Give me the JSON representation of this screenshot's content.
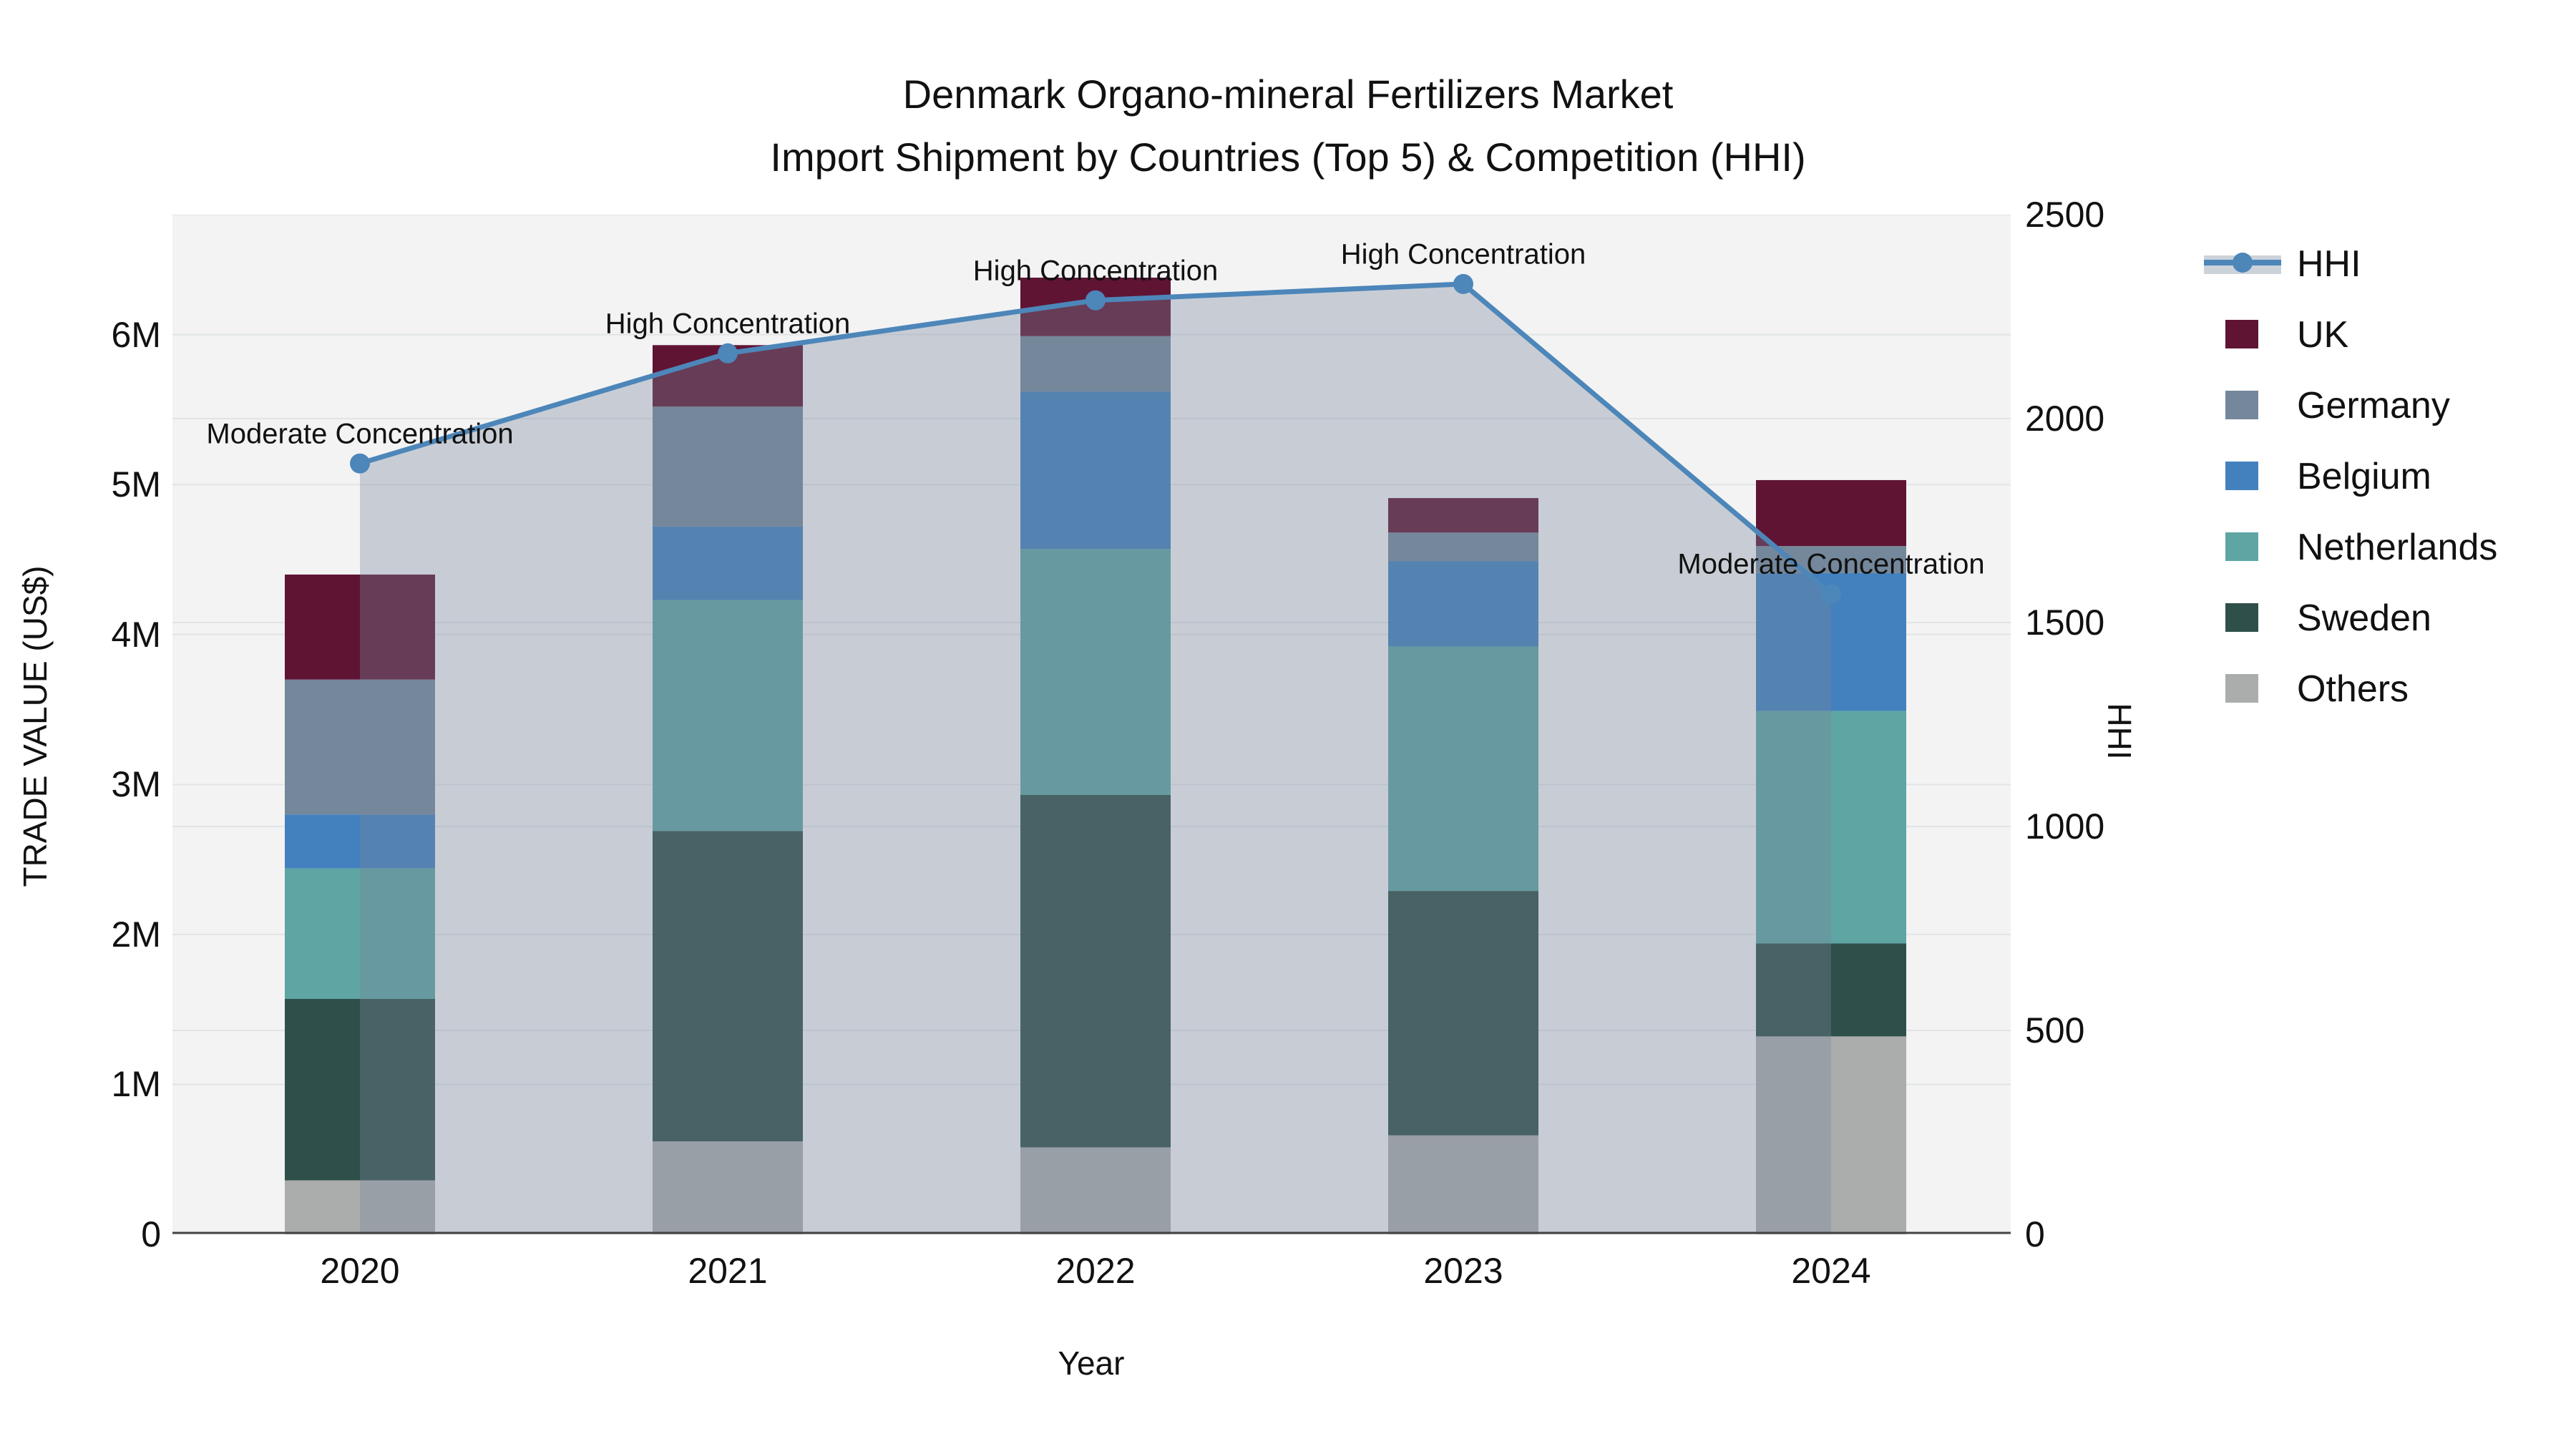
{
  "title": {
    "line1": "Denmark Organo-mineral Fertilizers Market",
    "line2": "Import Shipment by Countries (Top 5) & Competition (HHI)"
  },
  "axes": {
    "x": {
      "title": "Year",
      "categories": [
        "2020",
        "2021",
        "2022",
        "2023",
        "2024"
      ]
    },
    "y_left": {
      "title": "TRADE VALUE (US$)",
      "ticks": [
        "0",
        "1M",
        "2M",
        "3M",
        "4M",
        "5M",
        "6M"
      ],
      "tick_values_musd": [
        0,
        1,
        2,
        3,
        4,
        5,
        6
      ],
      "max_musd": 6.8
    },
    "y_right": {
      "title": "HHI",
      "ticks": [
        "0",
        "500",
        "1000",
        "1500",
        "2000",
        "2500"
      ],
      "tick_values": [
        0,
        500,
        1000,
        1500,
        2000,
        2500
      ],
      "max": 2500
    }
  },
  "legend": {
    "items": [
      {
        "label": "HHI",
        "type": "line",
        "color": "#4d86b9"
      },
      {
        "label": "UK",
        "type": "swatch",
        "color": "#5f1434"
      },
      {
        "label": "Germany",
        "type": "swatch",
        "color": "#74879b"
      },
      {
        "label": "Belgium",
        "type": "swatch",
        "color": "#4281bd"
      },
      {
        "label": "Netherlands",
        "type": "swatch",
        "color": "#5ea5a4"
      },
      {
        "label": "Sweden",
        "type": "swatch",
        "color": "#2f4f4a"
      },
      {
        "label": "Others",
        "type": "swatch",
        "color": "#abadac"
      }
    ]
  },
  "chart_data": {
    "type": "bar+line",
    "categories": [
      "2020",
      "2021",
      "2022",
      "2023",
      "2024"
    ],
    "bar_unit": "million US$ (left axis)",
    "stack_order_bottom_to_top": [
      "Others",
      "Sweden",
      "Netherlands",
      "Belgium",
      "Germany",
      "UK"
    ],
    "series": [
      {
        "name": "UK",
        "color": "#5f1434",
        "values_musd": [
          0.7,
          0.41,
          0.39,
          0.23,
          0.44
        ]
      },
      {
        "name": "Germany",
        "color": "#74879b",
        "values_musd": [
          0.9,
          0.8,
          0.37,
          0.19,
          0.18
        ]
      },
      {
        "name": "Belgium",
        "color": "#4281bd",
        "values_musd": [
          0.36,
          0.49,
          1.05,
          0.57,
          0.92
        ]
      },
      {
        "name": "Netherlands",
        "color": "#5ea5a4",
        "values_musd": [
          0.87,
          1.54,
          1.64,
          1.63,
          1.55
        ]
      },
      {
        "name": "Sweden",
        "color": "#2f4f4a",
        "values_musd": [
          1.21,
          2.07,
          2.35,
          1.63,
          0.62
        ]
      },
      {
        "name": "Others",
        "color": "#abadac",
        "values_musd": [
          0.36,
          0.62,
          0.58,
          0.66,
          1.32
        ]
      }
    ],
    "totals_musd": [
      4.4,
      5.93,
      6.38,
      4.91,
      5.03
    ],
    "line": {
      "name": "HHI",
      "axis": "right",
      "color": "#4d86b9",
      "fill": "tozeroy",
      "fill_color": "rgba(120,136,155,0.35)",
      "values": [
        1890,
        2160,
        2290,
        2330,
        1570
      ]
    },
    "annotations": [
      {
        "x": "2020",
        "text": "Moderate Concentration"
      },
      {
        "x": "2021",
        "text": "High Concentration"
      },
      {
        "x": "2022",
        "text": "High Concentration"
      },
      {
        "x": "2023",
        "text": "High Concentration"
      },
      {
        "x": "2024",
        "text": "Moderate Concentration"
      }
    ],
    "grid": true,
    "legend_position": "right"
  },
  "colors": {
    "background": "#ffffff",
    "plot_background": "#f3f3f4",
    "gridline": "#e2e4e6",
    "axis_line": "#444444",
    "text": "#111111"
  }
}
